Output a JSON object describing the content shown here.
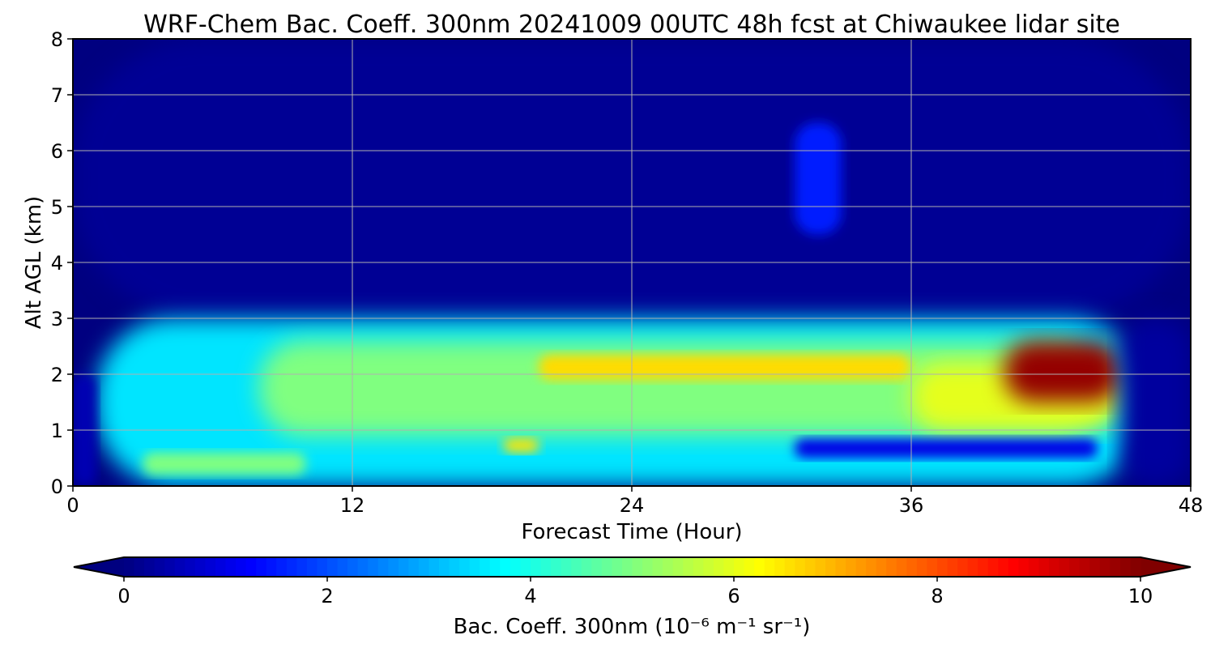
{
  "chart_data": {
    "type": "heatmap",
    "title": "WRF-Chem Bac. Coeff. 300nm  20241009 00UTC 48h fcst at Chiwaukee lidar site",
    "xlabel": "Forecast Time (Hour)",
    "ylabel": "Alt AGL (km)",
    "xlim": [
      0,
      48
    ],
    "ylim": [
      0,
      8
    ],
    "xticks": [
      0,
      12,
      24,
      36,
      48
    ],
    "yticks": [
      0,
      1,
      2,
      3,
      4,
      5,
      6,
      7,
      8
    ],
    "grid": true,
    "colormap": "jet",
    "colorbar": {
      "orientation": "horizontal",
      "min": 0,
      "max": 10,
      "extend": "both",
      "ticks": [
        0,
        2,
        4,
        6,
        8,
        10
      ],
      "label": "Bac. Coeff. 300nm  (10⁻⁶ m⁻¹ sr⁻¹)"
    },
    "features": [
      {
        "x": [
          0,
          48
        ],
        "y": [
          3,
          8
        ],
        "value": 0.2
      },
      {
        "x": [
          1,
          46
        ],
        "y": [
          0,
          3
        ],
        "value": 3.5
      },
      {
        "x": [
          8,
          44
        ],
        "y": [
          0.9,
          2.6
        ],
        "value": 5.0
      },
      {
        "x": [
          20,
          36
        ],
        "y": [
          1.9,
          2.35
        ],
        "value": 6.6
      },
      {
        "x": [
          36,
          45
        ],
        "y": [
          1.0,
          2.2
        ],
        "value": 6.0
      },
      {
        "x": [
          18.5,
          20
        ],
        "y": [
          0.6,
          0.85
        ],
        "value": 6.5
      },
      {
        "x": [
          31,
          44
        ],
        "y": [
          0.5,
          0.85
        ],
        "value": 1.0
      },
      {
        "x": [
          3,
          10
        ],
        "y": [
          0.2,
          0.6
        ],
        "value": 5.0
      },
      {
        "x": [
          40,
          45
        ],
        "y": [
          1.5,
          2.6
        ],
        "value": 9.8
      },
      {
        "x": [
          31,
          33
        ],
        "y": [
          4.5,
          6.5
        ],
        "value": 1.5
      },
      {
        "x": [
          0,
          1
        ],
        "y": [
          0,
          2
        ],
        "value": 0.5
      },
      {
        "x": [
          45,
          48
        ],
        "y": [
          0,
          3
        ],
        "value": 0.3
      }
    ]
  }
}
